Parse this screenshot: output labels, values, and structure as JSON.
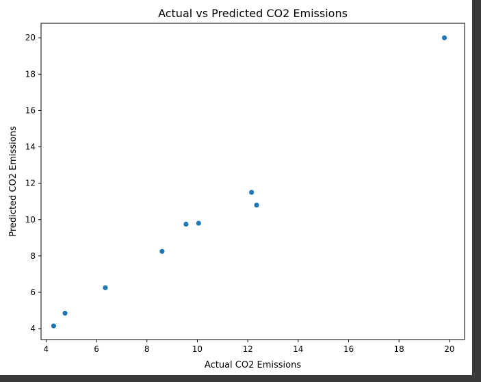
{
  "chart_data": {
    "type": "scatter",
    "title": "Actual vs Predicted CO2 Emissions",
    "xlabel": "Actual CO2 Emissions",
    "ylabel": "Predicted CO2 Emissions",
    "xlim": [
      3.8,
      20.6
    ],
    "ylim": [
      3.4,
      20.8
    ],
    "xticks": [
      4,
      6,
      8,
      10,
      12,
      14,
      16,
      18,
      20
    ],
    "yticks": [
      4,
      6,
      8,
      10,
      12,
      14,
      16,
      18,
      20
    ],
    "grid": false,
    "marker_color": "#1f77b4",
    "points": [
      {
        "x": 4.3,
        "y": 4.15
      },
      {
        "x": 4.75,
        "y": 4.85
      },
      {
        "x": 6.35,
        "y": 6.25
      },
      {
        "x": 8.6,
        "y": 8.25
      },
      {
        "x": 9.55,
        "y": 9.75
      },
      {
        "x": 10.05,
        "y": 9.8
      },
      {
        "x": 12.15,
        "y": 11.5
      },
      {
        "x": 12.35,
        "y": 10.8
      },
      {
        "x": 19.8,
        "y": 20.0
      }
    ]
  }
}
